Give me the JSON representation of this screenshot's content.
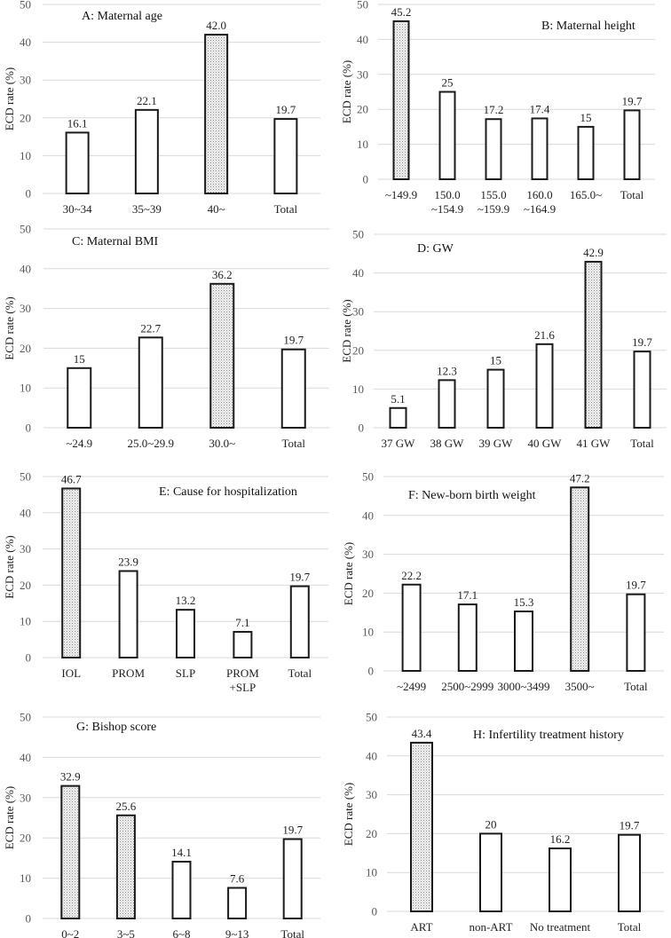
{
  "chart_data": [
    {
      "type": "bar",
      "title": "A: Maternal age",
      "ylabel": "ECD rate (%)",
      "ylim": [
        0,
        50
      ],
      "yticks": [
        0,
        10,
        20,
        30,
        40,
        50
      ],
      "grid": true,
      "categories": [
        [
          "30~34"
        ],
        [
          "35~39"
        ],
        [
          "40~"
        ],
        [
          "Total"
        ]
      ],
      "values": [
        16.1,
        22.1,
        42.0,
        19.7
      ],
      "data_labels": [
        "16.1",
        "22.1",
        "42.0",
        "19.7"
      ],
      "highlighted": [
        false,
        false,
        true,
        false
      ]
    },
    {
      "type": "bar",
      "title": "B: Maternal height",
      "ylabel": "ECD rate (%)",
      "ylim": [
        0,
        50
      ],
      "yticks": [
        0,
        10,
        20,
        30,
        40,
        50
      ],
      "grid": true,
      "categories": [
        [
          "~149.9"
        ],
        [
          "150.0",
          "~154.9"
        ],
        [
          "155.0",
          "~159.9"
        ],
        [
          "160.0",
          "~164.9"
        ],
        [
          "165.0~"
        ],
        [
          "Total"
        ]
      ],
      "values": [
        45.2,
        25,
        17.2,
        17.4,
        15,
        19.7
      ],
      "data_labels": [
        "45.2",
        "25",
        "17.2",
        "17.4",
        "15",
        "19.7"
      ],
      "highlighted": [
        true,
        false,
        false,
        false,
        false,
        false
      ]
    },
    {
      "type": "bar",
      "title": "C: Maternal BMI",
      "ylabel": "ECD rate (%)",
      "ylim": [
        0,
        50
      ],
      "yticks": [
        0,
        10,
        20,
        30,
        40,
        50
      ],
      "grid": true,
      "categories": [
        [
          "~24.9"
        ],
        [
          "25.0~29.9"
        ],
        [
          "30.0~"
        ],
        [
          "Total"
        ]
      ],
      "values": [
        15,
        22.7,
        36.2,
        19.7
      ],
      "data_labels": [
        "15",
        "22.7",
        "36.2",
        "19.7"
      ],
      "highlighted": [
        false,
        false,
        true,
        false
      ]
    },
    {
      "type": "bar",
      "title": "D: GW",
      "ylabel": "ECD rate (%)",
      "ylim": [
        0,
        50
      ],
      "yticks": [
        0,
        10,
        20,
        30,
        40,
        50
      ],
      "grid": true,
      "categories": [
        [
          "37 GW"
        ],
        [
          "38 GW"
        ],
        [
          "39 GW"
        ],
        [
          "40 GW"
        ],
        [
          "41 GW"
        ],
        [
          "Total"
        ]
      ],
      "values": [
        5.1,
        12.3,
        15,
        21.6,
        42.9,
        19.7
      ],
      "data_labels": [
        "5.1",
        "12.3",
        "15",
        "21.6",
        "42.9",
        "19.7"
      ],
      "highlighted": [
        false,
        false,
        false,
        false,
        true,
        false
      ]
    },
    {
      "type": "bar",
      "title": "E: Cause for hospitalization",
      "ylabel": "ECD rate (%)",
      "ylim": [
        0,
        50
      ],
      "yticks": [
        0,
        10,
        20,
        30,
        40,
        50
      ],
      "grid": true,
      "categories": [
        [
          "IOL"
        ],
        [
          "PROM"
        ],
        [
          "SLP"
        ],
        [
          "PROM",
          "+SLP"
        ],
        [
          "Total"
        ]
      ],
      "values": [
        46.7,
        23.9,
        13.2,
        7.1,
        19.7
      ],
      "data_labels": [
        "46.7",
        "23.9",
        "13.2",
        "7.1",
        "19.7"
      ],
      "highlighted": [
        true,
        false,
        false,
        false,
        false
      ]
    },
    {
      "type": "bar",
      "title": "F: New-born birth weight",
      "ylabel": "ECD rate (%)",
      "ylim": [
        0,
        50
      ],
      "yticks": [
        0,
        10,
        20,
        30,
        40,
        50
      ],
      "grid": true,
      "categories": [
        [
          "~2499"
        ],
        [
          "2500~2999"
        ],
        [
          "3000~3499"
        ],
        [
          "3500~"
        ],
        [
          "Total"
        ]
      ],
      "values": [
        22.2,
        17.1,
        15.3,
        47.2,
        19.7
      ],
      "data_labels": [
        "22.2",
        "17.1",
        "15.3",
        "47.2",
        "19.7"
      ],
      "highlighted": [
        false,
        false,
        false,
        true,
        false
      ]
    },
    {
      "type": "bar",
      "title": "G: Bishop score",
      "ylabel": "ECD rate (%)",
      "ylim": [
        0,
        50
      ],
      "yticks": [
        0,
        10,
        20,
        30,
        40,
        50
      ],
      "grid": true,
      "categories": [
        [
          "0~2"
        ],
        [
          "3~5"
        ],
        [
          "6~8"
        ],
        [
          "9~13"
        ],
        [
          "Total"
        ]
      ],
      "values": [
        32.9,
        25.6,
        14.1,
        7.6,
        19.7
      ],
      "data_labels": [
        "32.9",
        "25.6",
        "14.1",
        "7.6",
        "19.7"
      ],
      "highlighted": [
        true,
        true,
        false,
        false,
        false
      ]
    },
    {
      "type": "bar",
      "title": "H: Infertility treatment history",
      "ylabel": "ECD rate (%)",
      "ylim": [
        0,
        50
      ],
      "yticks": [
        0,
        10,
        20,
        30,
        40,
        50
      ],
      "grid": true,
      "categories": [
        [
          "ART"
        ],
        [
          "non-ART"
        ],
        [
          "No treatment"
        ],
        [
          "Total"
        ]
      ],
      "values": [
        43.4,
        20,
        16.2,
        19.7
      ],
      "data_labels": [
        "43.4",
        "20",
        "16.2",
        "19.7"
      ],
      "highlighted": [
        true,
        false,
        false,
        false
      ]
    }
  ],
  "colors": {
    "bar_stroke": "#1a1a1a",
    "bar_fill": "#ffffff",
    "highlight_fill": "dotted-gray",
    "grid": "#d9d9d9"
  }
}
